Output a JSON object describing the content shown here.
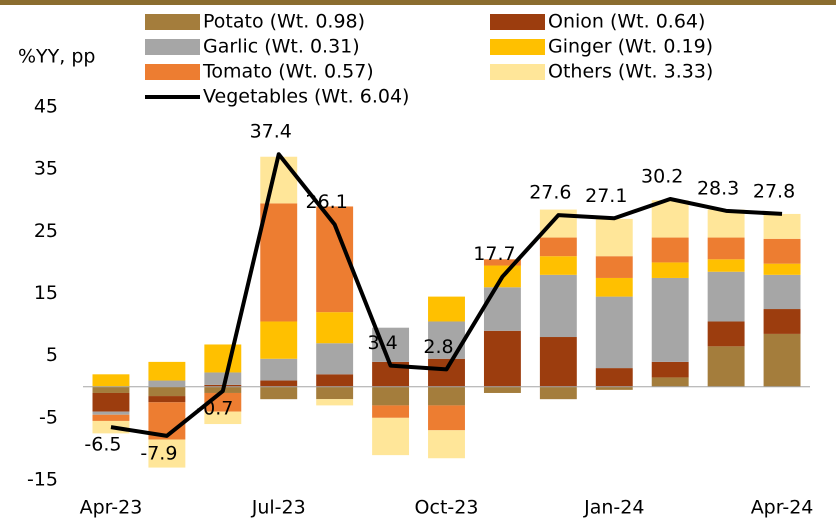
{
  "chart_data": {
    "type": "bar",
    "y_label": "%YY, pp",
    "categories": [
      "Apr-23",
      null,
      null,
      "Jul-23",
      null,
      null,
      "Oct-23",
      null,
      null,
      "Jan-24",
      null,
      null,
      "Apr-24"
    ],
    "series": [
      {
        "name": "Potato (Wt. 0.98)",
        "color": "#a47d3c",
        "values": [
          -1.0,
          -1.5,
          -1.0,
          -2.0,
          -2.0,
          -3.0,
          -3.0,
          -1.0,
          -2.0,
          -0.5,
          1.5,
          6.5,
          8.5
        ]
      },
      {
        "name": "Onion (Wt. 0.64)",
        "color": "#9c3d0e",
        "values": [
          -3.0,
          -1.0,
          0.3,
          1.0,
          2.0,
          4.0,
          4.5,
          9.0,
          8.0,
          3.0,
          2.5,
          4.0,
          4.0
        ]
      },
      {
        "name": "Garlic (Wt. 0.31)",
        "color": "#a6a6a6",
        "values": [
          -0.5,
          1.0,
          2.0,
          3.5,
          5.0,
          5.5,
          6.0,
          7.0,
          10.0,
          11.5,
          13.5,
          8.0,
          5.5
        ]
      },
      {
        "name": "Ginger (Wt. 0.19)",
        "color": "#ffc000",
        "values": [
          2.0,
          3.0,
          4.5,
          6.0,
          5.0,
          0.0,
          4.0,
          3.5,
          3.0,
          3.0,
          2.5,
          2.0,
          1.8
        ]
      },
      {
        "name": "Tomato (Wt. 0.57)",
        "color": "#ed7d31",
        "values": [
          -1.0,
          -6.0,
          -3.0,
          19.0,
          17.0,
          -2.0,
          -4.0,
          1.0,
          3.0,
          3.5,
          4.0,
          3.5,
          4.0
        ]
      },
      {
        "name": "Others (Wt. 3.33)",
        "color": "#ffe699",
        "values": [
          -2.0,
          -4.5,
          -2.0,
          7.5,
          -1.0,
          -6.0,
          -4.5,
          0.0,
          4.5,
          6.0,
          6.0,
          4.5,
          4.0
        ]
      }
    ],
    "line": {
      "name": "Vegetables (Wt. 6.04)",
      "color": "#000000",
      "values": [
        -6.5,
        -7.9,
        -0.7,
        37.4,
        26.1,
        3.4,
        2.8,
        17.7,
        27.6,
        27.1,
        30.2,
        28.3,
        27.8
      ]
    },
    "ylim": [
      -15,
      45
    ],
    "yticks": [
      -15,
      -5,
      5,
      15,
      25,
      35,
      45
    ]
  }
}
